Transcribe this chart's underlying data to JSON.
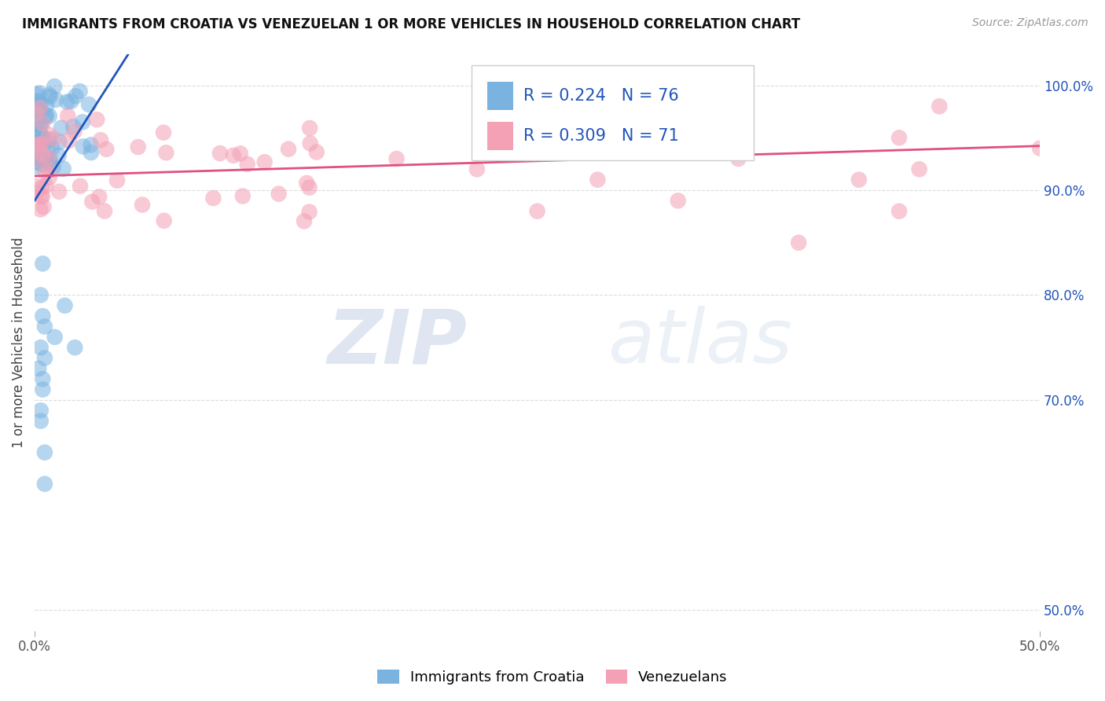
{
  "title": "IMMIGRANTS FROM CROATIA VS VENEZUELAN 1 OR MORE VEHICLES IN HOUSEHOLD CORRELATION CHART",
  "source": "Source: ZipAtlas.com",
  "ylabel": "1 or more Vehicles in Household",
  "ytick_labels": [
    "100.0%",
    "90.0%",
    "80.0%",
    "70.0%",
    "50.0%"
  ],
  "ytick_values": [
    1.0,
    0.9,
    0.8,
    0.7,
    0.5
  ],
  "xlim": [
    0.0,
    0.5
  ],
  "ylim": [
    0.48,
    1.03
  ],
  "r_croatia": 0.224,
  "n_croatia": 76,
  "r_venezuelan": 0.309,
  "n_venezuelan": 71,
  "legend_labels": [
    "Immigrants from Croatia",
    "Venezuelans"
  ],
  "color_croatia": "#7ab3e0",
  "color_venezuelan": "#f4a0b5",
  "trendline_croatia": "#2255bb",
  "trendline_venezuelan": "#e05080",
  "background_color": "#ffffff",
  "grid_color": "#cccccc",
  "watermark_zip": "ZIP",
  "watermark_atlas": "atlas",
  "title_fontsize": 12,
  "axis_label_fontsize": 12,
  "tick_fontsize": 12,
  "legend_fontsize": 15,
  "source_fontsize": 10
}
